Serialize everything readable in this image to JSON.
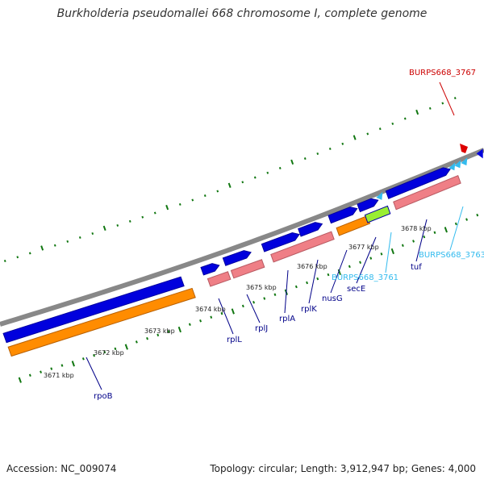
{
  "title": "Burkholderia pseudomallei 668 chromosome I, complete genome",
  "footer": {
    "accession": "Accession: NC_009074",
    "topology": "Topology: circular; Length: 3,912,947 bp; Genes: 4,000"
  },
  "colors": {
    "backbone": "#888888",
    "forward_gene": "#0000dd",
    "cds": "#ef7f86",
    "cds_highlight": "#ff8c00",
    "cds_green": "#99ee33",
    "trna_cyan": "#33bbee",
    "red_gene": "#dd0000",
    "tick": "#117711",
    "label_blue": "#000088",
    "label_cyan": "#33bbee",
    "label_red": "#cc0000"
  },
  "ruler": {
    "labels": [
      "3671 kbp",
      "3672 kbp",
      "3673 kbp",
      "3674 kbp",
      "3675 kbp",
      "3676 kbp",
      "3677 kbp",
      "3678 kbp"
    ]
  },
  "gene_labels": [
    {
      "text": "rpoB",
      "color": "label_blue"
    },
    {
      "text": "rplL",
      "color": "label_blue"
    },
    {
      "text": "rplJ",
      "color": "label_blue"
    },
    {
      "text": "rplA",
      "color": "label_blue"
    },
    {
      "text": "rplK",
      "color": "label_blue"
    },
    {
      "text": "nusG",
      "color": "label_blue"
    },
    {
      "text": "secE",
      "color": "label_blue"
    },
    {
      "text": "BURPS668_3761",
      "color": "label_cyan"
    },
    {
      "text": "tuf",
      "color": "label_blue"
    },
    {
      "text": "BURPS668_3763",
      "color": "label_cyan"
    },
    {
      "text": "BURPS668_3767",
      "color": "label_red"
    }
  ]
}
